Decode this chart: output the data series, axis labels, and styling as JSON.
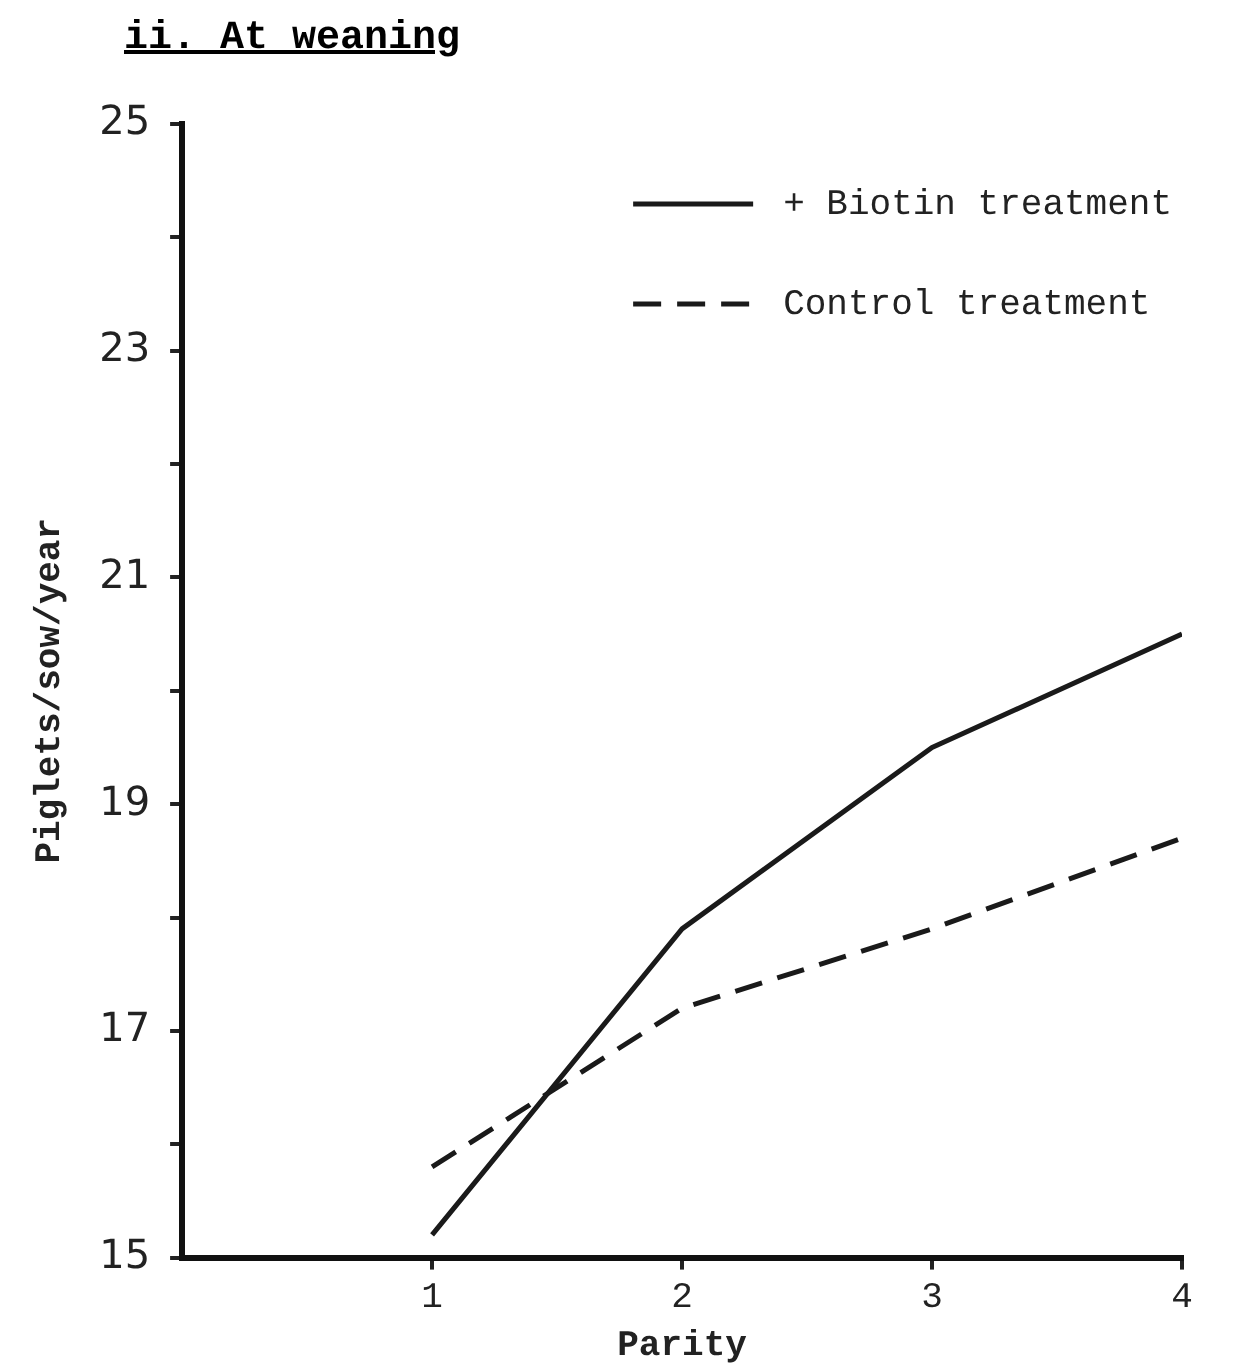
{
  "chart_data": {
    "type": "line",
    "title": "ii. At weaning",
    "xlabel": "Parity",
    "ylabel": "Piglets/sow/year",
    "x": [
      1,
      2,
      3,
      4
    ],
    "xlim": [
      0,
      4
    ],
    "xticks": [
      1,
      2,
      3,
      4
    ],
    "ylim": [
      15,
      25
    ],
    "yticks": [
      15,
      {
        "value": 16,
        "label": null
      },
      17,
      {
        "value": 18,
        "label": null
      },
      19,
      {
        "value": 20,
        "label": null
      },
      21,
      {
        "value": 22,
        "label": null
      },
      23,
      {
        "value": 24,
        "label": null
      },
      25
    ],
    "series": [
      {
        "name": "+ Biotin treatment",
        "color": "#1a1a1a",
        "line_style": "solid",
        "values": [
          15.2,
          17.9,
          19.5,
          20.5
        ]
      },
      {
        "name": "Control treatment",
        "color": "#1a1a1a",
        "line_style": "dashed",
        "values": [
          15.8,
          17.2,
          17.9,
          18.7
        ]
      }
    ],
    "grid": false,
    "legend": "top right",
    "marker": "none"
  }
}
